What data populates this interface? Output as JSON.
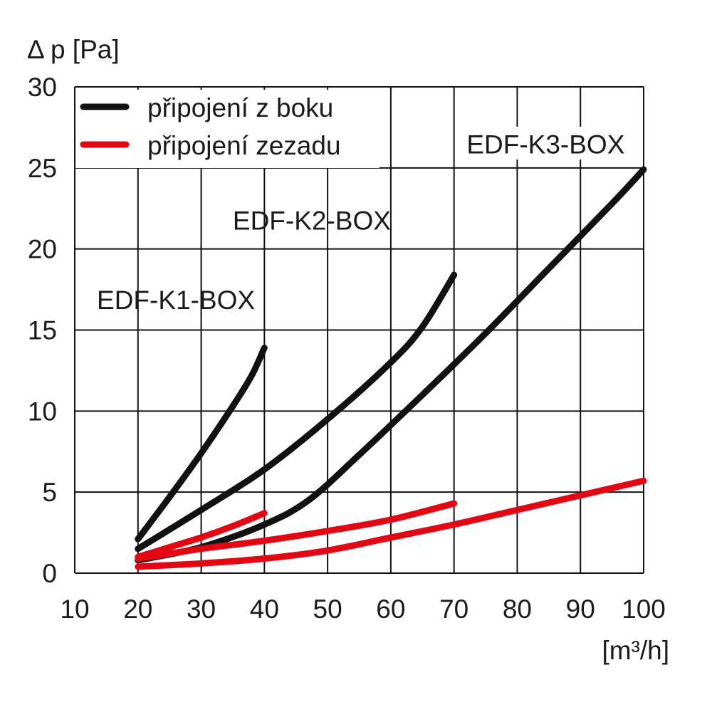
{
  "chart_data": {
    "type": "line",
    "ylabel": "Δ p [Pa]",
    "xlabel": "[m³/h]",
    "xlim": [
      10,
      100
    ],
    "ylim": [
      0,
      30
    ],
    "x_ticks": [
      "10",
      "20",
      "30",
      "40",
      "50",
      "60",
      "70",
      "80",
      "90",
      "100"
    ],
    "y_ticks": [
      "0",
      "5",
      "10",
      "15",
      "20",
      "25",
      "30"
    ],
    "grid": true,
    "legend": {
      "placement": "top-left",
      "entries": [
        {
          "label": "připojení z boku",
          "color": "#111111"
        },
        {
          "label": "připojení zezadu",
          "color": "#e30613"
        }
      ]
    },
    "annotations": [
      {
        "text": "EDF-K1-BOX",
        "x": 26,
        "y": 16.3
      },
      {
        "text": "EDF-K2-BOX",
        "x": 47.5,
        "y": 21.2
      },
      {
        "text": "EDF-K3-BOX",
        "x": 84.5,
        "y": 25.9
      }
    ],
    "series": [
      {
        "group": "EDF-K1-BOX",
        "type": "side",
        "color": "#111111",
        "x": [
          20,
          25,
          30,
          35,
          38,
          40
        ],
        "y": [
          2.1,
          4.7,
          7.4,
          10.3,
          12.2,
          13.9
        ]
      },
      {
        "group": "EDF-K2-BOX",
        "type": "side",
        "color": "#111111",
        "x": [
          20,
          30,
          40,
          50,
          60,
          65,
          70
        ],
        "y": [
          1.5,
          3.9,
          6.4,
          9.5,
          13.0,
          15.2,
          18.4
        ]
      },
      {
        "group": "EDF-K3-BOX",
        "type": "side",
        "color": "#111111",
        "x": [
          20,
          30,
          40,
          47,
          55,
          65,
          75,
          85,
          95,
          100
        ],
        "y": [
          0.8,
          1.6,
          3.0,
          4.5,
          7.3,
          11.0,
          14.8,
          18.8,
          22.8,
          24.9
        ]
      },
      {
        "group": "EDF-K1-BOX",
        "type": "rear",
        "color": "#e30613",
        "x": [
          20,
          25,
          30,
          35,
          40
        ],
        "y": [
          1.0,
          1.6,
          2.2,
          2.9,
          3.7
        ]
      },
      {
        "group": "EDF-K2-BOX",
        "type": "rear",
        "color": "#e30613",
        "x": [
          20,
          30,
          40,
          50,
          60,
          70
        ],
        "y": [
          0.9,
          1.5,
          2.0,
          2.6,
          3.3,
          4.3
        ]
      },
      {
        "group": "EDF-K3-BOX",
        "type": "rear",
        "color": "#e30613",
        "x": [
          20,
          30,
          40,
          50,
          60,
          70,
          80,
          90,
          100
        ],
        "y": [
          0.4,
          0.6,
          0.9,
          1.4,
          2.2,
          3.0,
          3.9,
          4.8,
          5.7
        ]
      }
    ]
  }
}
